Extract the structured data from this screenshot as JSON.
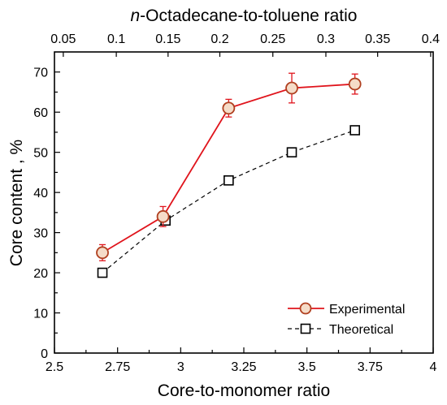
{
  "chart_data": {
    "type": "line",
    "xlabel": "Core-to-monomer ratio",
    "ylabel": "Core content , %",
    "top_xlabel_italic": "n",
    "top_xlabel_rest": "-Octadecane-to-toluene ratio",
    "xlim": [
      2.5,
      4
    ],
    "ylim": [
      0,
      75
    ],
    "x_ticks": [
      2.5,
      2.75,
      3,
      3.25,
      3.5,
      3.75,
      4
    ],
    "x_tick_labels": [
      "2.5",
      "2.75",
      "3",
      "3.25",
      "3.5",
      "3.75",
      "4"
    ],
    "y_ticks": [
      0,
      10,
      20,
      30,
      40,
      50,
      60,
      70
    ],
    "y_tick_labels": [
      "0",
      "10",
      "20",
      "30",
      "40",
      "50",
      "60",
      "70"
    ],
    "top_ticks": [
      2.62,
      2.82,
      3.03,
      3.23,
      3.44,
      3.65,
      3.86
    ],
    "top_tick_labels": [
      "0.05",
      "0.1",
      "0.15",
      "0.2",
      "0.25",
      "0.3",
      "0.35",
      "0.4"
    ],
    "top_tick_positions_data": [
      2.535,
      2.745,
      2.95,
      3.155,
      3.365,
      3.575,
      3.78,
      3.99
    ],
    "series": [
      {
        "name": "Experimental",
        "x": [
          2.69,
          2.93,
          3.19,
          3.44,
          3.69
        ],
        "y": [
          25,
          34,
          61,
          66,
          67
        ],
        "err": [
          2,
          2.5,
          2.2,
          3.7,
          2.5
        ],
        "color": "#e0141c",
        "marker_fill": "#f5dcc8",
        "marker_edge": "#b04020",
        "line_style": "solid",
        "marker": "circle"
      },
      {
        "name": "Theoretical",
        "x": [
          2.69,
          2.94,
          3.19,
          3.44,
          3.69
        ],
        "y": [
          20,
          33,
          43,
          50,
          55.5
        ],
        "color": "#000000",
        "marker_fill": "#ffffff",
        "marker_edge": "#000000",
        "line_style": "dashed",
        "marker": "square"
      }
    ],
    "legend_placement": "bottom-right",
    "grid": false
  }
}
